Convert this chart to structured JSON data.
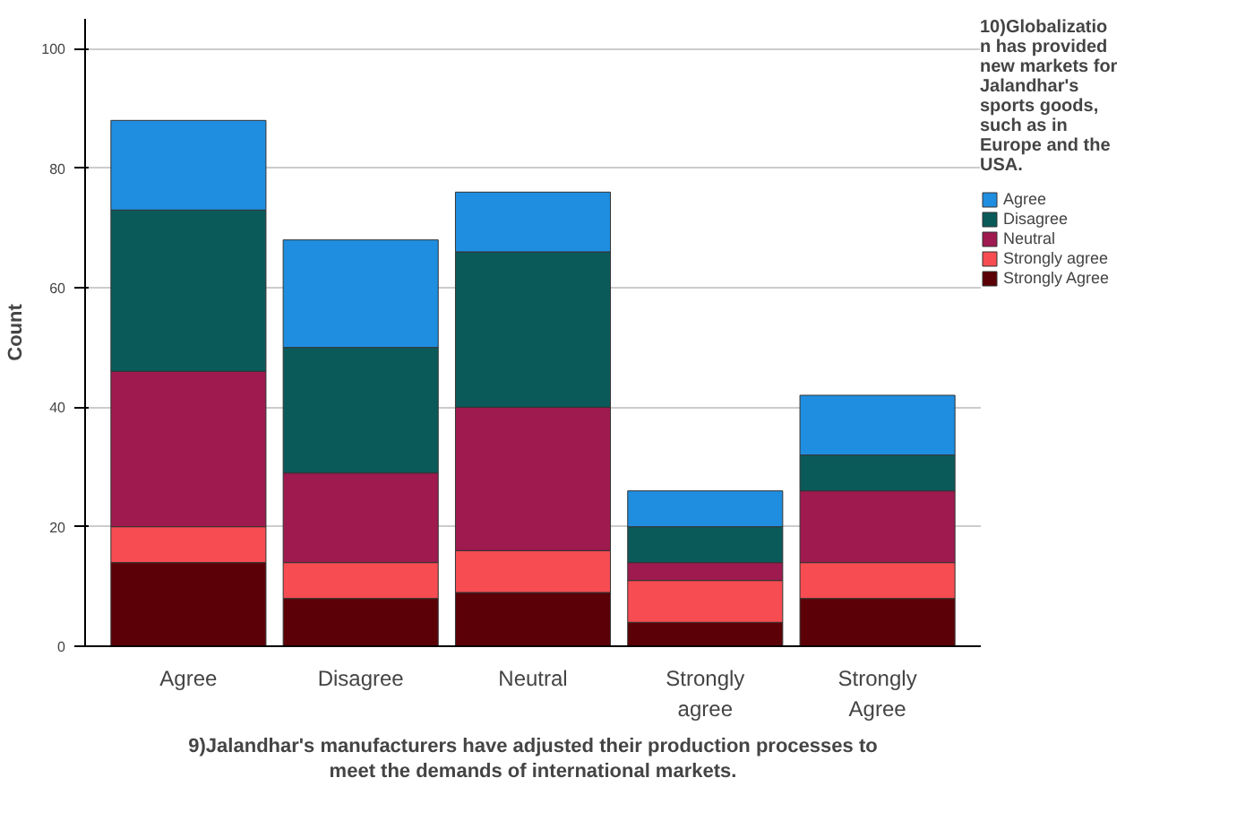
{
  "chart_data": {
    "type": "bar",
    "stacked": true,
    "xlabel": "9)Jalandhar's manufacturers have adjusted their production processes to meet the demands of international markets.",
    "ylabel": "Count",
    "legend_title": "10)Globalization has provided new markets for Jalandhar's sports goods, such as in Europe and the USA.",
    "categories": [
      "Agree",
      "Disagree",
      "Neutral",
      "Strongly agree",
      "Strongly Agree"
    ],
    "series": [
      {
        "name": "Strongly Agree",
        "color": "#5c0007",
        "values": [
          14,
          8,
          9,
          4,
          8
        ]
      },
      {
        "name": "Strongly agree",
        "color": "#f64c52",
        "values": [
          6,
          6,
          7,
          7,
          6
        ]
      },
      {
        "name": "Neutral",
        "color": "#9e1a4f",
        "values": [
          26,
          15,
          24,
          3,
          12
        ]
      },
      {
        "name": "Disagree",
        "color": "#0b5a5a",
        "values": [
          27,
          21,
          26,
          6,
          6
        ]
      },
      {
        "name": "Agree",
        "color": "#1f8ee0",
        "values": [
          15,
          18,
          10,
          6,
          10
        ]
      }
    ],
    "ylim": [
      0,
      105
    ],
    "yticks": [
      0,
      20,
      40,
      60,
      80,
      100
    ],
    "grid": "y",
    "legend": "right"
  }
}
